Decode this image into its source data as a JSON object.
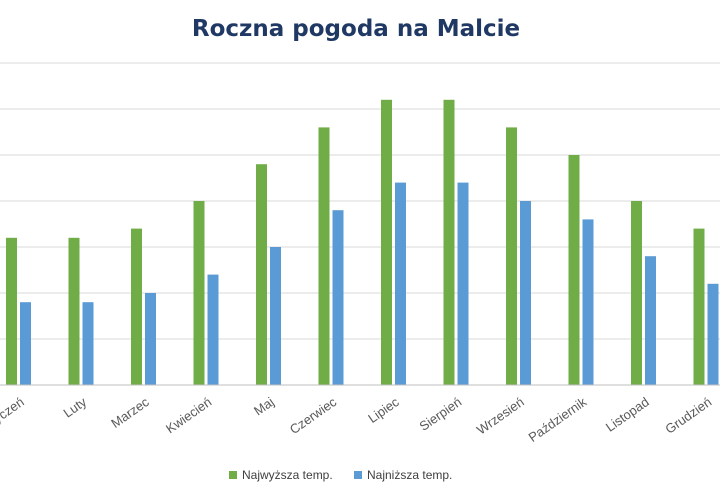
{
  "chart_data": {
    "type": "bar",
    "title": "Roczna pogoda na Malcie",
    "xlabel": "",
    "ylabel": "",
    "categories": [
      "Styczeń",
      "Luty",
      "Marzec",
      "Kwiecień",
      "Maj",
      "Czerwiec",
      "Lipiec",
      "Sierpień",
      "Wrzesień",
      "Październik",
      "Listopad",
      "Grudzień"
    ],
    "series": [
      {
        "name": "Najwyższa temp.",
        "color": "#70ad47",
        "values": [
          16,
          16,
          17,
          20,
          24,
          28,
          31,
          31,
          28,
          25,
          20,
          17
        ]
      },
      {
        "name": "Najniższa temp.",
        "color": "#5b9bd5",
        "values": [
          9,
          9,
          10,
          12,
          15,
          19,
          22,
          22,
          20,
          18,
          14,
          11
        ]
      }
    ],
    "ylim": [
      0,
      35
    ],
    "ytick_step": 5,
    "y_tick_labels_visible": false,
    "grid": true,
    "legend": "bottom"
  }
}
